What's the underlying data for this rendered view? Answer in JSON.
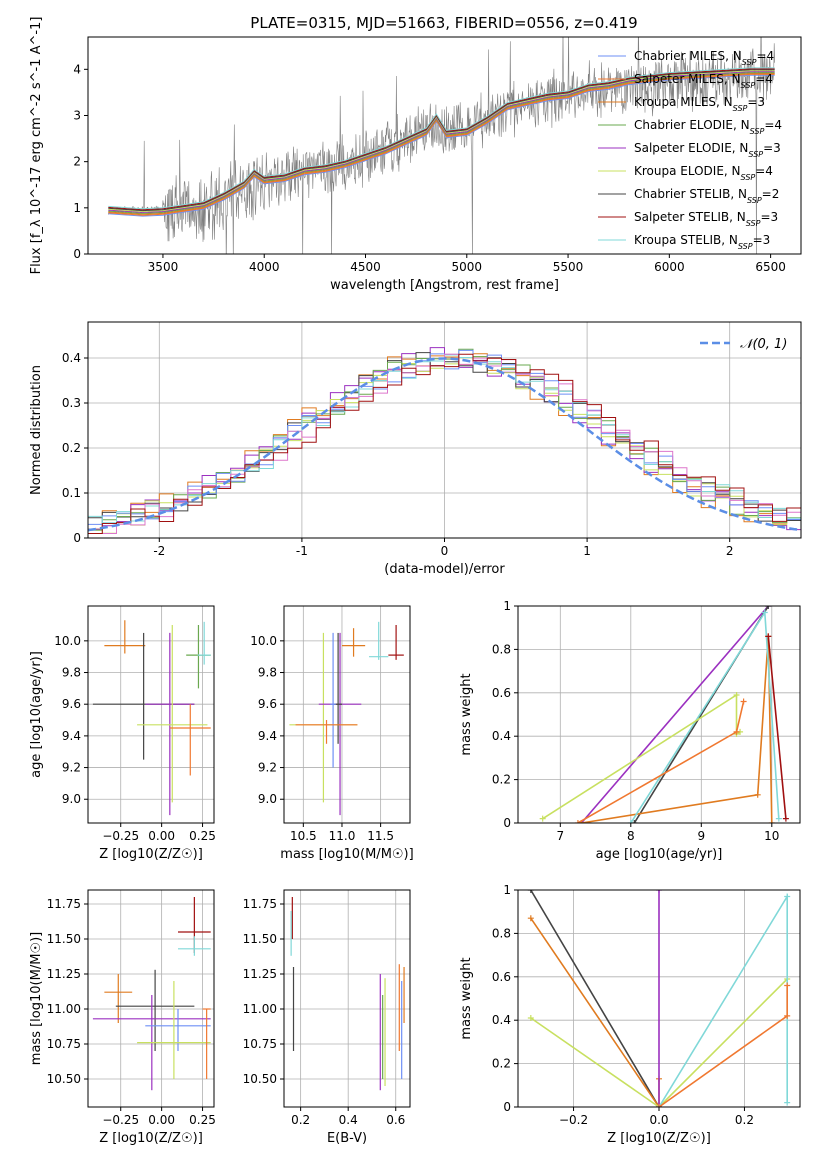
{
  "figure": {
    "title": "PLATE=0315, MJD=51663, FIBERID=0556, z=0.419"
  },
  "series_styles": [
    {
      "name": "Chabrier MILES",
      "nssp": "4",
      "color": "#6e8ff5"
    },
    {
      "name": "Salpeter MILES",
      "nssp": "4",
      "color": "#f07830"
    },
    {
      "name": "Kroupa MILES",
      "nssp": "3",
      "color": "#e07b20"
    },
    {
      "name": "Chabrier ELODIE",
      "nssp": "4",
      "color": "#6aa84f"
    },
    {
      "name": "Salpeter ELODIE",
      "nssp": "3",
      "color": "#9b30c0"
    },
    {
      "name": "Kroupa ELODIE",
      "nssp": "4",
      "color": "#c8e060"
    },
    {
      "name": "Chabrier STELIB",
      "nssp": "2",
      "color": "#444444"
    },
    {
      "name": "Salpeter STELIB",
      "nssp": "3",
      "color": "#a01010"
    },
    {
      "name": "Kroupa STELIB",
      "nssp": "3",
      "color": "#80d8d8"
    }
  ],
  "chart_data": [
    {
      "id": "spectrum",
      "type": "line",
      "title": "PLATE=0315, MJD=51663, FIBERID=0556, z=0.419",
      "xlabel": "wavelength [Angstrom, rest frame]",
      "ylabel": "Flux [f_λ 10^-17 erg cm^-2 s^-1 A^-1]",
      "xlim": [
        3130,
        6650
      ],
      "ylim": [
        0,
        4.7
      ],
      "xticks": [
        3500,
        4000,
        4500,
        5000,
        5500,
        6000,
        6500
      ],
      "yticks": [
        0,
        1,
        2,
        3,
        4
      ],
      "grid": false,
      "legend_position": "top-right",
      "legend": [
        "Chabrier MILES, N_SSP=4",
        "Salpeter MILES, N_SSP=4",
        "Kroupa MILES, N_SSP=3",
        "Chabrier ELODIE, N_SSP=4",
        "Salpeter ELODIE, N_SSP=3",
        "Kroupa ELODIE, N_SSP=4",
        "Chabrier STELIB, N_SSP=2",
        "Salpeter STELIB, N_SSP=3",
        "Kroupa STELIB, N_SSP=3"
      ],
      "data_series": {
        "name": "data",
        "color": "#808080",
        "x_range": [
          3230,
          6520
        ],
        "continuum_x": [
          3230,
          3500,
          3700,
          3900,
          4000,
          4200,
          4500,
          4800,
          4850,
          5000,
          5300,
          5600,
          6000,
          6500
        ],
        "continuum_y": [
          0.95,
          0.95,
          1.0,
          1.4,
          1.6,
          1.75,
          2.05,
          2.65,
          2.7,
          2.75,
          3.25,
          3.55,
          3.7,
          3.9
        ]
      },
      "model_series": {
        "x": [
          3230,
          3400,
          3500,
          3700,
          3800,
          3900,
          3950,
          4000,
          4100,
          4200,
          4300,
          4400,
          4500,
          4600,
          4700,
          4800,
          4850,
          4900,
          5000,
          5100,
          5200,
          5300,
          5400,
          5500,
          5600,
          5700,
          5800,
          6000,
          6200,
          6400,
          6520
        ],
        "y": [
          0.95,
          0.9,
          0.92,
          1.05,
          1.25,
          1.5,
          1.75,
          1.6,
          1.65,
          1.8,
          1.85,
          1.95,
          2.1,
          2.25,
          2.45,
          2.65,
          2.95,
          2.6,
          2.65,
          2.9,
          3.2,
          3.3,
          3.4,
          3.45,
          3.6,
          3.65,
          3.75,
          3.85,
          3.9,
          3.95,
          3.95
        ]
      }
    },
    {
      "id": "residuals",
      "type": "line",
      "xlabel": "(data-model)/error",
      "ylabel": "Normed distribution",
      "xlim": [
        -2.5,
        2.5
      ],
      "ylim": [
        0,
        0.48
      ],
      "xticks": [
        -2,
        -1,
        0,
        1,
        2
      ],
      "yticks": [
        0.0,
        0.1,
        0.2,
        0.3,
        0.4
      ],
      "grid": true,
      "legend_position": "top-right",
      "legend": [
        "𝒩(0, 1)"
      ],
      "gaussian": {
        "mu": 0,
        "sigma": 1,
        "color": "#5b8ee6"
      },
      "histogram_bin_width": 0.1
    },
    {
      "id": "age-vs-Z",
      "type": "scatter",
      "xlabel": "Z [log10(Z/Z☉)]",
      "ylabel": "age [log10(age/yr)]",
      "xlim": [
        -0.45,
        0.32
      ],
      "ylim": [
        8.85,
        10.22
      ],
      "xticks": [
        -0.25,
        0.0,
        0.25
      ],
      "xticklabels": [
        "−0.25",
        "0.00",
        "0.25"
      ],
      "yticks": [
        9.0,
        9.2,
        9.4,
        9.6,
        9.8,
        10.0
      ],
      "yticklabels": [
        "9.0",
        "9.2",
        "9.4",
        "9.6",
        "9.8",
        "10.0"
      ],
      "grid": true,
      "errorbars": [
        {
          "series": "Kroupa MILES",
          "x": [
            -0.35,
            -0.1
          ],
          "y": 9.97,
          "yerr": [
            9.92,
            10.13
          ]
        },
        {
          "series": "Chabrier STELIB",
          "x": [
            -0.42,
            0.2
          ],
          "y": 9.6,
          "yerr": [
            9.25,
            10.05
          ]
        },
        {
          "series": "Salpeter ELODIE",
          "x": [
            -0.1,
            0.2
          ],
          "y": 9.6,
          "yerr": [
            8.9,
            10.05
          ]
        },
        {
          "series": "Kroupa ELODIE",
          "x": [
            -0.15,
            0.28
          ],
          "y": 9.47,
          "yerr": [
            8.98,
            10.1
          ]
        },
        {
          "series": "Chabrier ELODIE",
          "x": [
            0.15,
            0.3
          ],
          "y": 9.91,
          "yerr": [
            9.7,
            10.1
          ]
        },
        {
          "series": "Kroupa STELIB",
          "x": [
            0.22,
            0.3
          ],
          "y": 9.91,
          "yerr": [
            9.85,
            10.12
          ]
        },
        {
          "series": "Salpeter MILES",
          "x": [
            0.05,
            0.3
          ],
          "y": 9.45,
          "yerr": [
            9.15,
            9.6
          ]
        }
      ]
    },
    {
      "id": "age-vs-mass",
      "type": "scatter",
      "xlabel": "mass [log10(M/M☉)]",
      "ylabel": "",
      "xlim": [
        10.25,
        11.88
      ],
      "ylim": [
        8.85,
        10.22
      ],
      "xticks": [
        10.5,
        11.0,
        11.5
      ],
      "xticklabels": [
        "10.5",
        "11.0",
        "11.5"
      ],
      "yticks": [
        9.0,
        9.2,
        9.4,
        9.6,
        9.8,
        10.0
      ],
      "yticklabels": [
        "9.0",
        "9.2",
        "9.4",
        "9.6",
        "9.8",
        "10.0"
      ],
      "grid": true,
      "errorbars": [
        {
          "series": "Kroupa ELODIE",
          "x": [
            10.32,
            11.2
          ],
          "y": 9.47,
          "yerr": [
            8.98,
            10.05
          ]
        },
        {
          "series": "Salpeter ELODIE",
          "x": [
            10.7,
            11.25
          ],
          "y": 9.6,
          "yerr": [
            8.9,
            10.05
          ]
        },
        {
          "series": "Chabrier STELIB",
          "x": [
            10.9,
            11.0
          ],
          "y": 9.6,
          "yerr": [
            9.35,
            10.05
          ]
        },
        {
          "series": "Chabrier MILES",
          "x": [
            10.85,
            10.92
          ],
          "y": 9.6,
          "yerr": [
            9.2,
            10.05
          ]
        },
        {
          "series": "Kroupa MILES",
          "x": [
            11.0,
            11.3
          ],
          "y": 9.97,
          "yerr": [
            9.9,
            10.08
          ]
        },
        {
          "series": "Kroupa STELIB",
          "x": [
            11.35,
            11.6
          ],
          "y": 9.9,
          "yerr": [
            9.88,
            10.12
          ]
        },
        {
          "series": "Salpeter STELIB",
          "x": [
            11.6,
            11.8
          ],
          "y": 9.91,
          "yerr": [
            9.88,
            10.1
          ]
        },
        {
          "series": "Salpeter MILES",
          "x": [
            10.4,
            11.2
          ],
          "y": 9.47,
          "yerr": [
            9.35,
            9.5
          ]
        }
      ]
    },
    {
      "id": "weight-vs-age",
      "type": "line",
      "xlabel": "age [log10(age/yr)]",
      "ylabel": "mass weight",
      "xlim": [
        6.4,
        10.4
      ],
      "ylim": [
        0,
        1.0
      ],
      "xticks": [
        7,
        8,
        9,
        10
      ],
      "yticks": [
        0.0,
        0.2,
        0.4,
        0.6,
        0.8,
        1.0
      ],
      "grid": true,
      "lines": [
        {
          "series": "Salpeter ELODIE",
          "x": [
            7.3,
            9.95
          ],
          "y": [
            0.0,
            1.0
          ]
        },
        {
          "series": "Chabrier STELIB",
          "x": [
            8.05,
            9.95
          ],
          "y": [
            0.0,
            1.0
          ]
        },
        {
          "series": "Kroupa MILES",
          "x": [
            7.3,
            9.8,
            9.95,
            10.0
          ],
          "y": [
            0.0,
            0.13,
            0.86,
            0.0
          ]
        },
        {
          "series": "Kroupa STELIB",
          "x": [
            8.0,
            9.9,
            10.1
          ],
          "y": [
            0.0,
            0.97,
            0.02
          ]
        },
        {
          "series": "Kroupa ELODIE",
          "x": [
            6.75,
            9.5,
            9.5,
            9.55
          ],
          "y": [
            0.02,
            0.59,
            0.41,
            0.42
          ]
        },
        {
          "series": "Salpeter MILES",
          "x": [
            7.25,
            9.5,
            9.6
          ],
          "y": [
            0.0,
            0.42,
            0.56
          ]
        },
        {
          "series": "Salpeter STELIB",
          "x": [
            9.95,
            10.2
          ],
          "y": [
            0.86,
            0.02
          ]
        }
      ]
    },
    {
      "id": "mass-vs-Z",
      "type": "scatter",
      "xlabel": "Z [log10(Z/Z☉)]",
      "ylabel": "mass [log10(M/M☉)]",
      "xlim": [
        -0.45,
        0.32
      ],
      "ylim": [
        10.3,
        11.85
      ],
      "xticks": [
        -0.25,
        0.0,
        0.25
      ],
      "xticklabels": [
        "−0.25",
        "0.00",
        "0.25"
      ],
      "yticks": [
        10.5,
        10.75,
        11.0,
        11.25,
        11.5,
        11.75
      ],
      "yticklabels": [
        "10.50",
        "10.75",
        "11.00",
        "11.25",
        "11.50",
        "11.75"
      ],
      "grid": true,
      "errorbars": [
        {
          "series": "Kroupa MILES",
          "x": [
            -0.35,
            -0.18
          ],
          "y": 11.12,
          "yerr": [
            10.9,
            11.25
          ]
        },
        {
          "series": "Chabrier STELIB",
          "x": [
            -0.28,
            0.2
          ],
          "y": 11.02,
          "yerr": [
            10.7,
            11.28
          ]
        },
        {
          "series": "Salpeter ELODIE",
          "x": [
            -0.42,
            0.3
          ],
          "y": 10.93,
          "yerr": [
            10.42,
            11.1
          ]
        },
        {
          "series": "Chabrier MILES",
          "x": [
            -0.1,
            0.3
          ],
          "y": 10.88,
          "yerr": [
            10.7,
            11.0
          ]
        },
        {
          "series": "Kroupa ELODIE",
          "x": [
            -0.15,
            0.3
          ],
          "y": 10.76,
          "yerr": [
            10.5,
            11.2
          ]
        },
        {
          "series": "Salpeter STELIB",
          "x": [
            0.1,
            0.3
          ],
          "y": 11.55,
          "yerr": [
            11.4,
            11.8
          ]
        },
        {
          "series": "Kroupa STELIB",
          "x": [
            0.1,
            0.3
          ],
          "y": 11.43,
          "yerr": [
            11.38,
            11.52
          ]
        },
        {
          "series": "Salpeter MILES",
          "x": [
            0.25,
            0.3
          ],
          "y": 11.0,
          "yerr": [
            10.5,
            11.0
          ]
        }
      ]
    },
    {
      "id": "mass-vs-EBV",
      "type": "scatter",
      "xlabel": "E(B-V)",
      "ylabel": "",
      "xlim": [
        0.13,
        0.66
      ],
      "ylim": [
        10.3,
        11.85
      ],
      "xticks": [
        0.2,
        0.4,
        0.6
      ],
      "xticklabels": [
        "0.2",
        "0.4",
        "0.6"
      ],
      "yticks": [
        10.5,
        10.75,
        11.0,
        11.25,
        11.5,
        11.75
      ],
      "yticklabels": [
        "10.50",
        "10.75",
        "11.00",
        "11.25",
        "11.50",
        "11.75"
      ],
      "grid": true,
      "errorbars": [
        {
          "series": "Salpeter STELIB",
          "x": 0.165,
          "yerr": [
            11.5,
            11.8
          ]
        },
        {
          "series": "Kroupa STELIB",
          "x": 0.16,
          "yerr": [
            11.38,
            11.7
          ]
        },
        {
          "series": "Chabrier STELIB",
          "x": 0.17,
          "yerr": [
            10.7,
            11.3
          ]
        },
        {
          "series": "Salpeter ELODIE",
          "x": 0.535,
          "yerr": [
            10.42,
            11.25
          ]
        },
        {
          "series": "Chabrier ELODIE",
          "x": 0.545,
          "yerr": [
            10.5,
            11.1
          ]
        },
        {
          "series": "Kroupa ELODIE",
          "x": 0.555,
          "yerr": [
            10.45,
            11.22
          ]
        },
        {
          "series": "Salpeter MILES",
          "x": 0.615,
          "yerr": [
            10.7,
            11.32
          ]
        },
        {
          "series": "Chabrier MILES",
          "x": 0.625,
          "yerr": [
            10.5,
            11.2
          ]
        },
        {
          "series": "Kroupa MILES",
          "x": 0.635,
          "yerr": [
            10.9,
            11.3
          ]
        }
      ]
    },
    {
      "id": "weight-vs-Z",
      "type": "line",
      "xlabel": "Z [log10(Z/Z☉)]",
      "ylabel": "mass weight",
      "xlim": [
        -0.33,
        0.33
      ],
      "ylim": [
        0,
        1.0
      ],
      "xticks": [
        -0.2,
        0.0,
        0.2
      ],
      "xticklabels": [
        "−0.2",
        "0.0",
        "0.2"
      ],
      "yticks": [
        0.0,
        0.2,
        0.4,
        0.6,
        0.8,
        1.0
      ],
      "grid": true,
      "lines": [
        {
          "series": "Chabrier STELIB",
          "x": [
            -0.3,
            0.0
          ],
          "y": [
            1.0,
            0.0
          ]
        },
        {
          "series": "Kroupa MILES",
          "x": [
            -0.3,
            0.0,
            0.0
          ],
          "y": [
            0.87,
            0.0,
            0.13
          ]
        },
        {
          "series": "Kroupa ELODIE",
          "x": [
            -0.3,
            0.0,
            0.3
          ],
          "y": [
            0.41,
            0.0,
            0.59
          ]
        },
        {
          "series": "Salpeter ELODIE",
          "x": [
            0.0,
            0.0
          ],
          "y": [
            0.0,
            1.0
          ]
        },
        {
          "series": "Kroupa STELIB",
          "x": [
            0.0,
            0.3,
            0.3
          ],
          "y": [
            0.0,
            0.97,
            0.02
          ]
        },
        {
          "series": "Salpeter MILES",
          "x": [
            0.0,
            0.3,
            0.3
          ],
          "y": [
            0.0,
            0.42,
            0.56
          ]
        }
      ]
    }
  ]
}
